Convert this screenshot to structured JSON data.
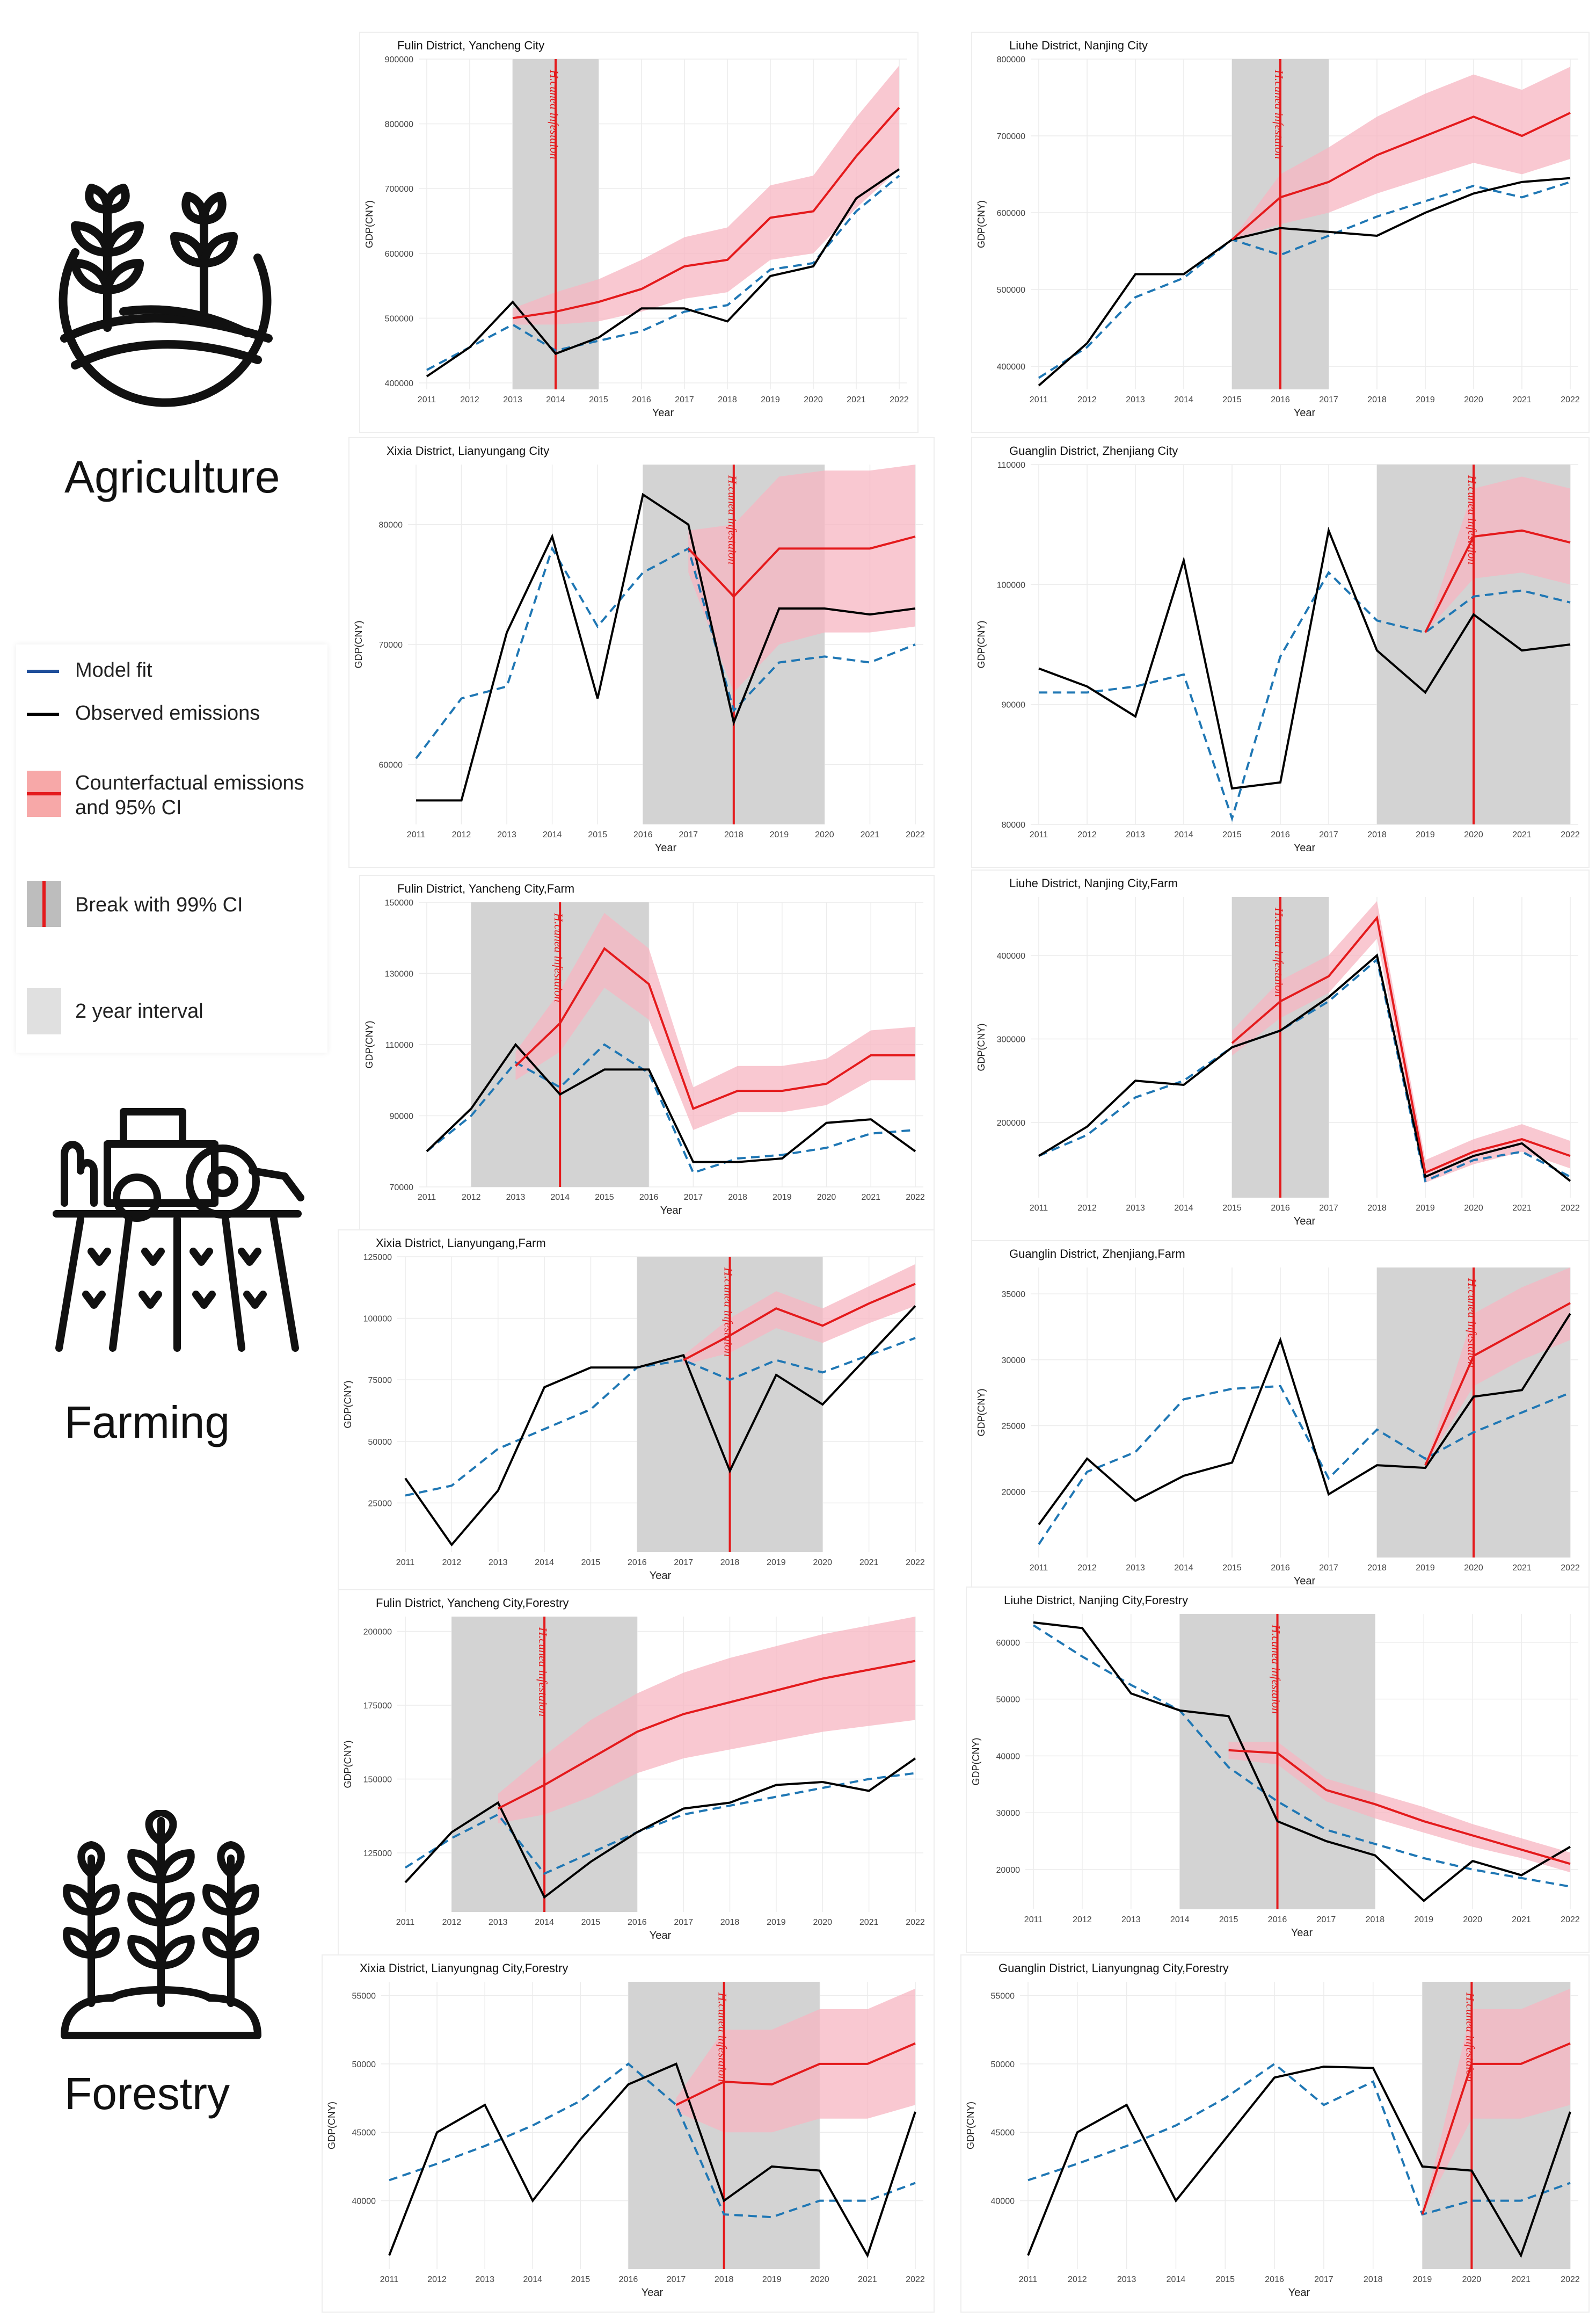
{
  "sectors": {
    "agriculture": "Agriculture",
    "farming": "Farming",
    "forestry": "Forestry"
  },
  "icons": {
    "agriculture": "field-plants-icon",
    "farming": "tractor-field-icon",
    "forestry": "sapling-trees-icon"
  },
  "legend": {
    "model_fit": "Model fit",
    "observed": "Observed emissions",
    "counterfactual": "Counterfactual emissions\nand 95% CI",
    "break": "Break with 99% CI",
    "interval": "2 year interval"
  },
  "colors": {
    "model": "#1f77b4",
    "observed": "#000000",
    "counterfactual": "#e41a1c",
    "ci_band": "#f7b6c2",
    "interval": "#d3d3d3"
  },
  "chart_data": [
    {
      "type": "line",
      "title": "Fulin District, Yancheng City",
      "xlabel": "Year",
      "ylabel": "GDP(CNY)",
      "x": [
        2011,
        2012,
        2013,
        2014,
        2015,
        2016,
        2017,
        2018,
        2019,
        2020,
        2021,
        2022
      ],
      "ylim": [
        390000,
        900000
      ],
      "yticks": [
        400000,
        500000,
        600000,
        700000,
        800000,
        900000
      ],
      "interval": [
        2013,
        2015
      ],
      "break_year": 2014,
      "break_label": "H.cunea infestaion",
      "observed": [
        410000,
        455000,
        525000,
        445000,
        470000,
        515000,
        515000,
        495000,
        565000,
        580000,
        685000,
        730000
      ],
      "model": [
        420000,
        455000,
        490000,
        450000,
        465000,
        480000,
        510000,
        520000,
        575000,
        585000,
        665000,
        720000
      ],
      "cf_x": [
        2013,
        2014,
        2015,
        2016,
        2017,
        2018,
        2019,
        2020,
        2021,
        2022
      ],
      "counterfactual": [
        500000,
        510000,
        525000,
        545000,
        580000,
        590000,
        655000,
        665000,
        750000,
        825000
      ],
      "ci_low": [
        490000,
        490000,
        495000,
        510000,
        530000,
        540000,
        590000,
        600000,
        670000,
        730000
      ],
      "ci_high": [
        515000,
        540000,
        560000,
        590000,
        625000,
        640000,
        705000,
        720000,
        810000,
        890000
      ]
    },
    {
      "type": "line",
      "title": "Liuhe District, Nanjing City",
      "xlabel": "Year",
      "ylabel": "GDP(CNY)",
      "x": [
        2011,
        2012,
        2013,
        2014,
        2015,
        2016,
        2017,
        2018,
        2019,
        2020,
        2021,
        2022
      ],
      "ylim": [
        370000,
        800000
      ],
      "yticks": [
        400000,
        500000,
        600000,
        700000,
        800000
      ],
      "interval": [
        2015,
        2017
      ],
      "break_year": 2016,
      "break_label": "H.cunea infestaion",
      "observed": [
        375000,
        430000,
        520000,
        520000,
        565000,
        580000,
        575000,
        570000,
        600000,
        625000,
        640000,
        645000
      ],
      "model": [
        385000,
        425000,
        490000,
        515000,
        565000,
        545000,
        570000,
        595000,
        615000,
        635000,
        620000,
        640000
      ],
      "cf_x": [
        2015,
        2016,
        2017,
        2018,
        2019,
        2020,
        2021,
        2022
      ],
      "counterfactual": [
        565000,
        620000,
        640000,
        675000,
        700000,
        725000,
        700000,
        730000
      ],
      "ci_low": [
        565000,
        585000,
        600000,
        625000,
        645000,
        665000,
        650000,
        670000
      ],
      "ci_high": [
        565000,
        650000,
        685000,
        725000,
        755000,
        780000,
        760000,
        790000
      ]
    },
    {
      "type": "line",
      "title": "Xixia District, Lianyungang City",
      "xlabel": "Year",
      "ylabel": "GDP(CNY)",
      "x": [
        2011,
        2012,
        2013,
        2014,
        2015,
        2016,
        2017,
        2018,
        2019,
        2020,
        2021,
        2022
      ],
      "ylim": [
        55000,
        85000
      ],
      "yticks": [
        60000,
        70000,
        80000
      ],
      "interval": [
        2016,
        2020
      ],
      "break_year": 2018,
      "break_label": "H.cunea infestaion",
      "observed": [
        57000,
        57000,
        71000,
        79000,
        65500,
        82500,
        80000,
        63500,
        73000,
        73000,
        72500,
        73000
      ],
      "model": [
        60500,
        65500,
        66500,
        78000,
        71500,
        76000,
        78000,
        64500,
        68500,
        69000,
        68500,
        70000
      ],
      "cf_x": [
        2017,
        2018,
        2019,
        2020,
        2021,
        2022
      ],
      "counterfactual": [
        78000,
        74000,
        78000,
        78000,
        78000,
        79000
      ],
      "ci_low": [
        76000,
        66000,
        70000,
        71000,
        71000,
        71500
      ],
      "ci_high": [
        79500,
        80000,
        84000,
        84500,
        84500,
        85000
      ]
    },
    {
      "type": "line",
      "title": "Guanglin District, Zhenjiang City",
      "xlabel": "Year",
      "ylabel": "GDP(CNY)",
      "x": [
        2011,
        2012,
        2013,
        2014,
        2015,
        2016,
        2017,
        2018,
        2019,
        2020,
        2021,
        2022
      ],
      "ylim": [
        80000,
        110000
      ],
      "yticks": [
        80000,
        90000,
        100000,
        110000
      ],
      "interval": [
        2018,
        2022
      ],
      "break_year": 2020,
      "break_label": "H.cunea infestaion",
      "observed": [
        93000,
        91500,
        89000,
        102000,
        83000,
        83500,
        104500,
        94500,
        91000,
        97500,
        94500,
        95000
      ],
      "model": [
        91000,
        91000,
        91500,
        92500,
        80500,
        94000,
        101000,
        97000,
        96000,
        99000,
        99500,
        98500
      ],
      "cf_x": [
        2019,
        2020,
        2021,
        2022
      ],
      "counterfactual": [
        96000,
        104000,
        104500,
        103500
      ],
      "ci_low": [
        96000,
        100500,
        101000,
        100000
      ],
      "ci_high": [
        96000,
        108000,
        109000,
        108000
      ]
    },
    {
      "type": "line",
      "title": "Fulin District, Yancheng City,Farm",
      "xlabel": "Year",
      "ylabel": "GDP(CNY)",
      "x": [
        2011,
        2012,
        2013,
        2014,
        2015,
        2016,
        2017,
        2018,
        2019,
        2020,
        2021,
        2022
      ],
      "ylim": [
        70000,
        150000
      ],
      "yticks": [
        70000,
        90000,
        110000,
        130000,
        150000
      ],
      "interval": [
        2012,
        2016
      ],
      "break_year": 2014,
      "break_label": "H.cunea infestaion",
      "observed": [
        80000,
        92000,
        110000,
        96000,
        103000,
        103000,
        77000,
        77000,
        78000,
        88000,
        89000,
        80000
      ],
      "model": [
        80000,
        90000,
        105000,
        98000,
        110000,
        102000,
        74000,
        78000,
        79000,
        81000,
        85000,
        86000
      ],
      "cf_x": [
        2013,
        2014,
        2015,
        2016,
        2017,
        2018,
        2019,
        2020,
        2021,
        2022
      ],
      "counterfactual": [
        104000,
        116000,
        137000,
        127000,
        92000,
        97000,
        97000,
        99000,
        107000,
        107000
      ],
      "ci_low": [
        100000,
        108000,
        126000,
        117000,
        86000,
        91000,
        91000,
        93000,
        100000,
        100000
      ],
      "ci_high": [
        108000,
        125000,
        147000,
        137000,
        98000,
        104000,
        104000,
        106000,
        114000,
        115000
      ]
    },
    {
      "type": "line",
      "title": "Liuhe District, Nanjing City,Farm",
      "xlabel": "Year",
      "ylabel": "GDP(CNY)",
      "x": [
        2011,
        2012,
        2013,
        2014,
        2015,
        2016,
        2017,
        2018,
        2019,
        2020,
        2021,
        2022
      ],
      "ylim": [
        110000,
        470000
      ],
      "yticks": [
        200000,
        300000,
        400000
      ],
      "interval": [
        2015,
        2017
      ],
      "break_year": 2016,
      "break_label": "H.cunea infestaion",
      "observed": [
        160000,
        195000,
        250000,
        245000,
        290000,
        310000,
        350000,
        400000,
        135000,
        160000,
        175000,
        130000
      ],
      "model": [
        160000,
        185000,
        230000,
        250000,
        290000,
        310000,
        345000,
        395000,
        130000,
        155000,
        165000,
        135000
      ],
      "cf_x": [
        2015,
        2016,
        2017,
        2018,
        2019,
        2020,
        2021,
        2022
      ],
      "counterfactual": [
        295000,
        345000,
        375000,
        445000,
        140000,
        165000,
        180000,
        160000
      ],
      "ci_low": [
        280000,
        325000,
        355000,
        420000,
        128000,
        150000,
        165000,
        145000
      ],
      "ci_high": [
        310000,
        370000,
        400000,
        465000,
        155000,
        180000,
        198000,
        178000
      ]
    },
    {
      "type": "line",
      "title": "Xixia District, Lianyungang,Farm",
      "xlabel": "Year",
      "ylabel": "GDP(CNY)",
      "x": [
        2011,
        2012,
        2013,
        2014,
        2015,
        2016,
        2017,
        2018,
        2019,
        2020,
        2021,
        2022
      ],
      "ylim": [
        5000,
        125000
      ],
      "yticks": [
        25000,
        50000,
        75000,
        100000,
        125000
      ],
      "interval": [
        2016,
        2020
      ],
      "break_year": 2018,
      "break_label": "H.cunea infestaion",
      "observed": [
        35000,
        8000,
        30000,
        72000,
        80000,
        80000,
        85000,
        38000,
        77000,
        65000,
        85000,
        105000
      ],
      "model": [
        28000,
        32000,
        47000,
        55000,
        63000,
        80000,
        83000,
        75000,
        83000,
        78000,
        85000,
        92000
      ],
      "cf_x": [
        2017,
        2018,
        2019,
        2020,
        2021,
        2022
      ],
      "counterfactual": [
        83000,
        93000,
        104000,
        97000,
        106000,
        114000
      ],
      "ci_low": [
        81000,
        86000,
        96000,
        90000,
        98000,
        105000
      ],
      "ci_high": [
        85000,
        100000,
        111000,
        104000,
        113000,
        122000
      ]
    },
    {
      "type": "line",
      "title": "Guanglin District, Zhenjiang,Farm",
      "xlabel": "Year",
      "ylabel": "GDP(CNY)",
      "x": [
        2011,
        2012,
        2013,
        2014,
        2015,
        2016,
        2017,
        2018,
        2019,
        2020,
        2021,
        2022
      ],
      "ylim": [
        15000,
        37000
      ],
      "yticks": [
        20000,
        25000,
        30000,
        35000
      ],
      "interval": [
        2018,
        2022
      ],
      "break_year": 2020,
      "break_label": "H.cunea infestaion",
      "observed": [
        17500,
        22500,
        19300,
        21200,
        22200,
        31500,
        19800,
        22000,
        21800,
        27200,
        27700,
        33500
      ],
      "model": [
        16000,
        21500,
        23000,
        27000,
        27800,
        28000,
        21000,
        24700,
        22500,
        24500,
        26000,
        27500
      ],
      "cf_x": [
        2019,
        2020,
        2021,
        2022
      ],
      "counterfactual": [
        22000,
        30300,
        32300,
        34300
      ],
      "ci_low": [
        22000,
        28000,
        30000,
        31500
      ],
      "ci_high": [
        22000,
        33500,
        35500,
        37000
      ]
    },
    {
      "type": "line",
      "title": "Fulin District, Yancheng City,Forestry",
      "xlabel": "Year",
      "ylabel": "GDP(CNY)",
      "x": [
        2011,
        2012,
        2013,
        2014,
        2015,
        2016,
        2017,
        2018,
        2019,
        2020,
        2021,
        2022
      ],
      "ylim": [
        105000,
        205000
      ],
      "yticks": [
        125000,
        150000,
        175000,
        200000
      ],
      "interval": [
        2012,
        2016
      ],
      "break_year": 2014,
      "break_label": "H.cunea infestaion",
      "observed": [
        115000,
        132000,
        142000,
        110000,
        122000,
        132000,
        140000,
        142000,
        148000,
        149000,
        146000,
        157000
      ],
      "model": [
        120000,
        130000,
        138000,
        118000,
        125000,
        132000,
        138000,
        141000,
        144000,
        147000,
        150000,
        152000
      ],
      "cf_x": [
        2013,
        2014,
        2015,
        2016,
        2017,
        2018,
        2019,
        2020,
        2021,
        2022
      ],
      "counterfactual": [
        140000,
        148000,
        157000,
        166000,
        172000,
        176000,
        180000,
        184000,
        187000,
        190000
      ],
      "ci_low": [
        135000,
        138000,
        144000,
        152000,
        157000,
        160000,
        163000,
        166000,
        168000,
        170000
      ],
      "ci_high": [
        145000,
        158000,
        170000,
        179000,
        186000,
        191000,
        195000,
        199000,
        202000,
        205000
      ]
    },
    {
      "type": "line",
      "title": "Liuhe District, Nanjing City,Forestry",
      "xlabel": "Year",
      "ylabel": "GDP(CNY)",
      "x": [
        2011,
        2012,
        2013,
        2014,
        2015,
        2016,
        2017,
        2018,
        2019,
        2020,
        2021,
        2022
      ],
      "ylim": [
        13000,
        65000
      ],
      "yticks": [
        20000,
        30000,
        40000,
        50000,
        60000
      ],
      "interval": [
        2014,
        2018
      ],
      "break_year": 2016,
      "break_label": "H.cunea infestaion",
      "observed": [
        63500,
        62500,
        51000,
        48000,
        47000,
        28500,
        25000,
        22500,
        14500,
        21500,
        19000,
        24000
      ],
      "model": [
        63000,
        57500,
        52500,
        48000,
        38000,
        32000,
        27000,
        24500,
        22000,
        20000,
        18500,
        17000
      ],
      "cf_x": [
        2015,
        2016,
        2017,
        2018,
        2019,
        2020,
        2021,
        2022
      ],
      "counterfactual": [
        41000,
        40500,
        34000,
        31500,
        28500,
        26000,
        23500,
        21000
      ],
      "ci_low": [
        39500,
        38500,
        32000,
        29000,
        26500,
        24000,
        22000,
        19500
      ],
      "ci_high": [
        42500,
        42500,
        36000,
        33500,
        31000,
        28000,
        25500,
        23000
      ]
    },
    {
      "type": "line",
      "title": "Xixia District, Lianyungnag City,Forestry",
      "xlabel": "Year",
      "ylabel": "GDP(CNY)",
      "x": [
        2011,
        2012,
        2013,
        2014,
        2015,
        2016,
        2017,
        2018,
        2019,
        2020,
        2021,
        2022
      ],
      "ylim": [
        35000,
        56000
      ],
      "yticks": [
        40000,
        45000,
        50000,
        55000
      ],
      "interval": [
        2016,
        2020
      ],
      "break_year": 2018,
      "break_label": "H.cunea infestaion",
      "observed": [
        36000,
        45000,
        47000,
        40000,
        44500,
        48500,
        50000,
        40000,
        42500,
        42200,
        36000,
        46500
      ],
      "model": [
        41500,
        42700,
        44000,
        45500,
        47300,
        50000,
        47000,
        39000,
        38800,
        40000,
        40000,
        41300
      ],
      "cf_x": [
        2017,
        2018,
        2019,
        2020,
        2021,
        2022
      ],
      "counterfactual": [
        47000,
        48700,
        48500,
        50000,
        50000,
        51500
      ],
      "ci_low": [
        46500,
        45000,
        45000,
        46000,
        46000,
        47000
      ],
      "ci_high": [
        47500,
        52500,
        52500,
        54000,
        54000,
        55500
      ]
    },
    {
      "type": "line",
      "title": "Guanglin District, Lianyungnag City,Forestry",
      "xlabel": "Year",
      "ylabel": "GDP(CNY)",
      "x": [
        2011,
        2012,
        2013,
        2014,
        2015,
        2016,
        2017,
        2018,
        2019,
        2020,
        2021,
        2022
      ],
      "ylim": [
        35000,
        56000
      ],
      "yticks": [
        40000,
        45000,
        50000,
        55000
      ],
      "interval": [
        2019,
        2022
      ],
      "break_year": 2020,
      "break_label": "H.cunea infestaion",
      "observed": [
        36000,
        45000,
        47000,
        40000,
        44500,
        49000,
        49800,
        49700,
        42500,
        42200,
        36000,
        46500
      ],
      "model": [
        41500,
        42700,
        44000,
        45500,
        47500,
        50000,
        47000,
        48700,
        39000,
        40000,
        40000,
        41300
      ],
      "cf_x": [
        2019,
        2020,
        2021,
        2022
      ],
      "counterfactual": [
        39000,
        50000,
        50000,
        51500
      ],
      "ci_low": [
        39000,
        46000,
        46000,
        47000
      ],
      "ci_high": [
        39000,
        54000,
        54000,
        55500
      ]
    }
  ]
}
